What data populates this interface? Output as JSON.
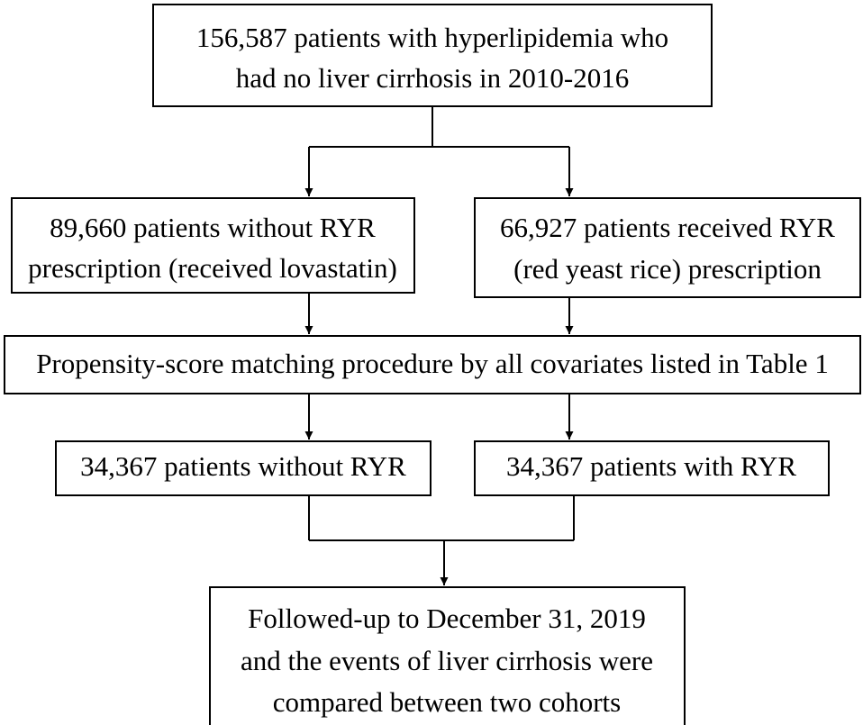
{
  "nodes": [
    {
      "lines": [
        "156,587 patients with hyperlipidemia who",
        "had no liver cirrhosis in 2010-2016"
      ]
    },
    {
      "lines": [
        "89,660 patients without RYR",
        "prescription (received lovastatin)"
      ]
    },
    {
      "lines": [
        "66,927 patients received RYR",
        "(red yeast rice) prescription"
      ]
    },
    {
      "lines": [
        "Propensity-score matching procedure by all covariates listed in Table 1"
      ]
    },
    {
      "lines": [
        "34,367 patients without RYR"
      ]
    },
    {
      "lines": [
        "34,367 patients with RYR"
      ]
    },
    {
      "lines": [
        "Followed-up to December 31, 2019",
        "and the events of liver cirrhosis were",
        "compared between two cohorts"
      ]
    }
  ]
}
